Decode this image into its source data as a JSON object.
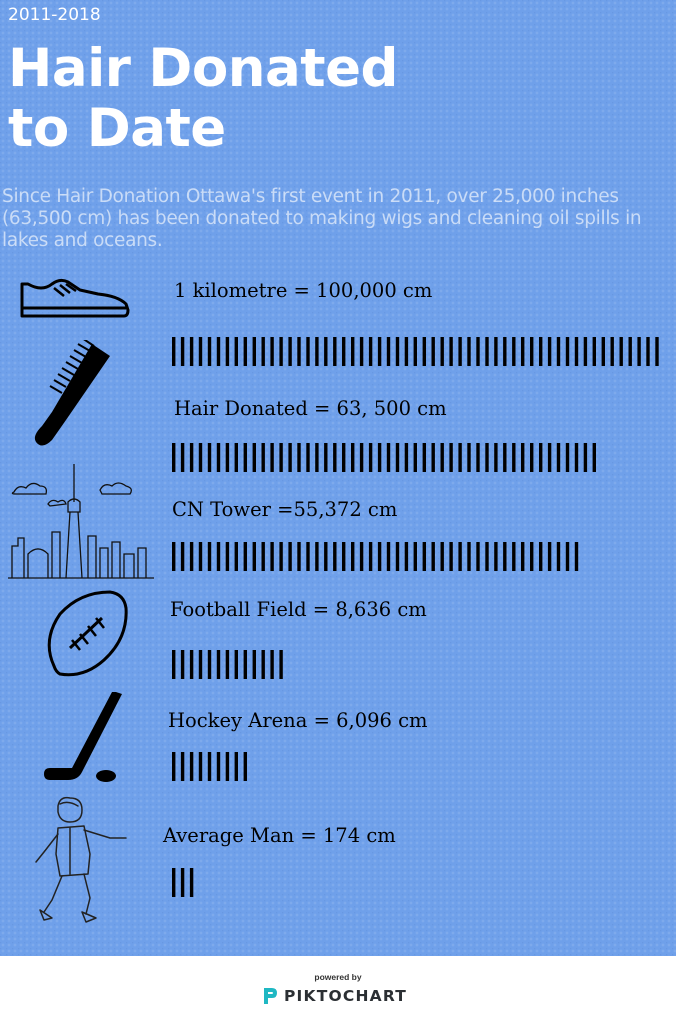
{
  "header": {
    "period": "2011-2018",
    "title_line1": "Hair Donated",
    "title_line2": "to Date",
    "intro": "Since Hair Donation Ottawa's first event in 2011, over 25,000 inches (63,500 cm) has been donated to making wigs and cleaning oil spills in lakes and oceans."
  },
  "chart_data": {
    "type": "bar",
    "categories": [
      "1 kilometre",
      "Hair Donated",
      "CN Tower",
      "Football Field",
      "Hockey Arena",
      "Average Man"
    ],
    "labels": [
      "1 kilometre = 100,000 cm",
      "Hair Donated = 63, 500 cm",
      "CN Tower =55,372 cm",
      "Football Field = 8,636 cm",
      "Hockey Arena = 6,096 cm",
      "Average Man = 174 cm"
    ],
    "values": [
      100000,
      63500,
      55372,
      8636,
      6096,
      174
    ],
    "bar_tick_counts": [
      55,
      48,
      46,
      13,
      9,
      3
    ],
    "unit": "cm",
    "icons": [
      "shoe-icon",
      "comb-icon",
      "toronto-skyline-icon",
      "football-icon",
      "hockey-stick-icon",
      "man-icon"
    ],
    "colors": {
      "background": "#6fa0ea",
      "bars": "#000000",
      "text": "#ffffff"
    }
  },
  "footer": {
    "powered_by": "powered by",
    "brand": "PIKTOCHART",
    "brand_color": "#1fb8c3"
  }
}
